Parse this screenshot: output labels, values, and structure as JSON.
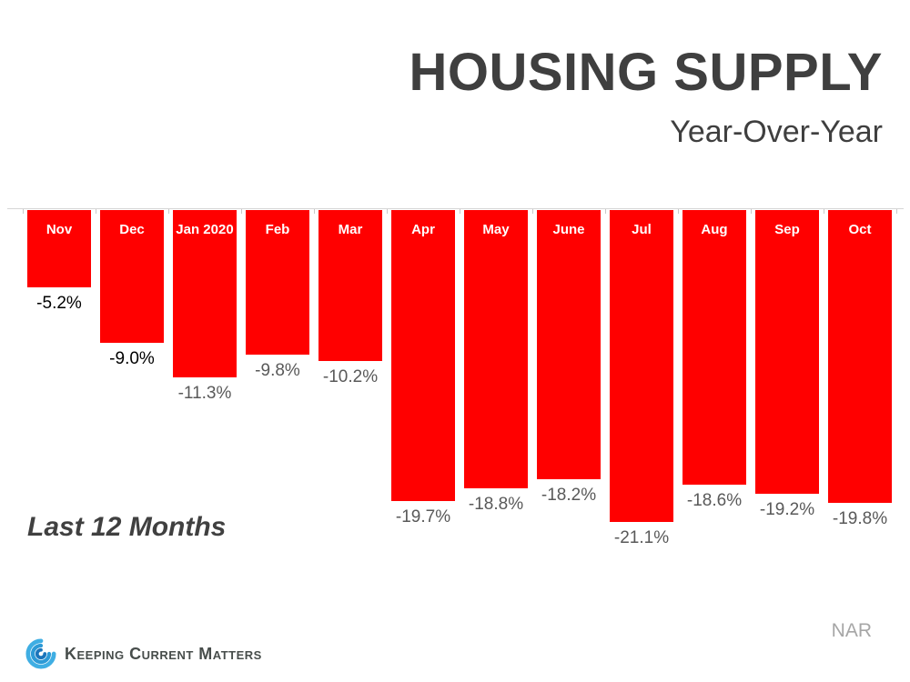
{
  "header": {
    "title": "HOUSING SUPPLY",
    "subtitle": "Year-Over-Year"
  },
  "annotation": "Last 12 Months",
  "source": "NAR",
  "footer_logo": "Keeping Current Matters",
  "colors": {
    "bar": "#ff0000",
    "bar_month_text": "#ffffff",
    "axis": "#d6d6d6",
    "title_text": "#3f3f3f",
    "source_text": "#a6a6a6",
    "logo_blue": "#3faee3"
  },
  "chart_data": {
    "type": "bar",
    "title": "HOUSING SUPPLY",
    "subtitle": "Year-Over-Year",
    "xlabel": "",
    "ylabel": "",
    "ylim": [
      -22,
      0
    ],
    "grid": false,
    "legend": false,
    "bar_color": "#ff0000",
    "categories": [
      "Nov",
      "Dec",
      "Jan 2020",
      "Feb",
      "Mar",
      "Apr",
      "May",
      "June",
      "Jul",
      "Aug",
      "Sep",
      "Oct"
    ],
    "values": [
      -5.2,
      -9.0,
      -11.3,
      -9.8,
      -10.2,
      -19.7,
      -18.8,
      -18.2,
      -21.1,
      -18.6,
      -19.2,
      -19.8
    ],
    "value_labels": [
      "-5.2%",
      "-9.0%",
      "-11.3%",
      "-9.8%",
      "-10.2%",
      "-19.7%",
      "-18.8%",
      "-18.2%",
      "-21.1%",
      "-18.6%",
      "-19.2%",
      "-19.8%"
    ],
    "value_label_colors": [
      "#000000",
      "#000000",
      "#595959",
      "#595959",
      "#595959",
      "#595959",
      "#595959",
      "#595959",
      "#595959",
      "#595959",
      "#595959",
      "#595959"
    ],
    "annotation": "Last 12 Months",
    "source": "NAR"
  }
}
